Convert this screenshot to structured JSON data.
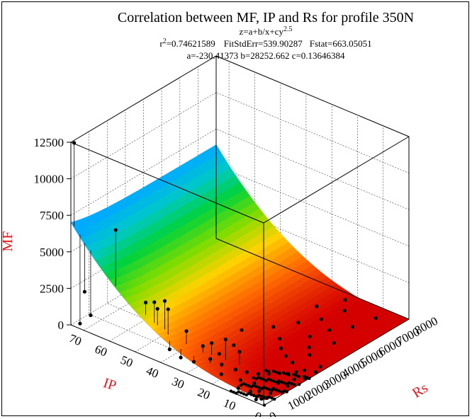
{
  "chart_data": {
    "type": "surface3d",
    "title": "Correlation between MF, IP and Rs for profile 350N",
    "equation_base": "z=a+b/x+cy",
    "equation_exp": "2.5",
    "stats": {
      "r2_label": "r",
      "r2_sup": "2",
      "r2_value": "=0.74621589",
      "fitstderr": "FitStdErr=539.90287",
      "fstat": "Fstat=663.05051"
    },
    "params": "a=-230.41373 b=28252.662 c=0.13646384",
    "coefficients": {
      "a": -230.41373,
      "b": 28252.662,
      "c": 0.13646384
    },
    "zlabel": "MF",
    "xlabel": "Rs",
    "ylabel": "IP",
    "zticks": [
      "0",
      "2500",
      "5000",
      "7500",
      "10000",
      "12500"
    ],
    "xticks": [
      "0",
      "1000",
      "2000",
      "3000",
      "4000",
      "5000",
      "6000",
      "7000",
      "8000"
    ],
    "yticks": [
      "0",
      "10",
      "20",
      "30",
      "40",
      "50",
      "60",
      "70"
    ],
    "xlim": [
      0,
      8000
    ],
    "ylim": [
      0,
      75
    ],
    "zlim": [
      0,
      12500
    ],
    "grid": true,
    "colormap": [
      "#d40000",
      "#ff6600",
      "#ffd200",
      "#7ddc00",
      "#00d23c",
      "#00c8c8",
      "#00aaff"
    ]
  }
}
